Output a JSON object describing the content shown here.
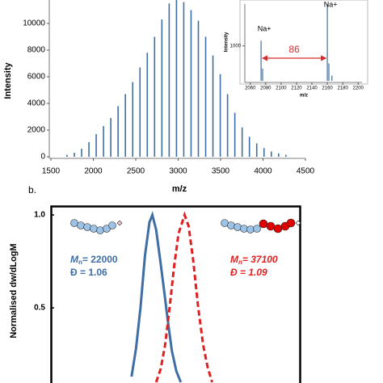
{
  "chart_data": [
    {
      "type": "bar",
      "y_label": "Intensity",
      "x_label": "m/z",
      "color": "#3d6fa5",
      "x": [
        1690,
        1776,
        1862,
        1948,
        2034,
        2120,
        2206,
        2292,
        2378,
        2464,
        2550,
        2636,
        2722,
        2808,
        2894,
        2980,
        3066,
        3152,
        3238,
        3324,
        3410,
        3496,
        3582,
        3668,
        3754,
        3840,
        3926,
        4012,
        4098,
        4184,
        4270
      ],
      "values": [
        150,
        300,
        600,
        1100,
        1700,
        2300,
        2900,
        3800,
        4700,
        5600,
        6700,
        7800,
        9000,
        10300,
        11500,
        11800,
        11600,
        11000,
        10200,
        9000,
        7600,
        6200,
        4700,
        3300,
        2200,
        1500,
        1000,
        650,
        400,
        250,
        150
      ],
      "xlim": [
        1500,
        4500
      ],
      "xticks": [
        1500,
        2000,
        2500,
        3000,
        3500,
        4000,
        4500
      ],
      "ylim": [
        0,
        12000
      ],
      "yticks": [
        0,
        2000,
        4000,
        6000,
        8000,
        10000
      ]
    },
    {
      "type": "bar",
      "y_label": "Intensity",
      "x_label": "m/z",
      "color": "#3d6fa5",
      "x": [
        2074,
        2076,
        2160,
        2162,
        2166
      ],
      "values": [
        1150,
        350,
        2200,
        500,
        150
      ],
      "xlim": [
        2055,
        2205
      ],
      "xticks": [
        2060,
        2080,
        2100,
        2120,
        2140,
        2160,
        2180,
        2200
      ],
      "ylim": [
        0,
        2200
      ],
      "yticks": [
        1000
      ],
      "annotations": [
        "Na+",
        "Na+"
      ],
      "gap_label": "86",
      "gap_color": "#d92b2b"
    },
    {
      "type": "line",
      "panel_label": "b.",
      "y_label": "Normalised dw/dLogM",
      "xlim": [
        0,
        111.5
      ],
      "ylim": [
        0.1,
        1.05
      ],
      "yticks": [
        0.5,
        {
          "value": 1,
          "label": "1.0"
        }
      ],
      "series": [
        {
          "color": "#3e6ea3",
          "dashed": false,
          "mn_text": "M",
          "mn_sub": "n",
          "mn_value": "= 22000",
          "d_text": "Đ = 1.06",
          "x": [
            36,
            38,
            40,
            42,
            44,
            45.3,
            47,
            49,
            51,
            52,
            54,
            56,
            58
          ],
          "values": [
            0.13,
            0.28,
            0.5,
            0.78,
            0.96,
            1.0,
            0.92,
            0.74,
            0.55,
            0.45,
            0.27,
            0.16,
            0.1
          ]
        },
        {
          "color": "#e02020",
          "dashed": true,
          "mn_text": "M",
          "mn_sub": "n",
          "mn_value": "= 37100",
          "d_text": "Đ = 1.09",
          "x": [
            47,
            49,
            51,
            53,
            55,
            57,
            59.7,
            61.5,
            63.5,
            65.8,
            68,
            70,
            72
          ],
          "values": [
            0.1,
            0.17,
            0.3,
            0.5,
            0.72,
            0.9,
            1.0,
            0.94,
            0.76,
            0.5,
            0.3,
            0.18,
            0.1
          ]
        }
      ]
    }
  ]
}
